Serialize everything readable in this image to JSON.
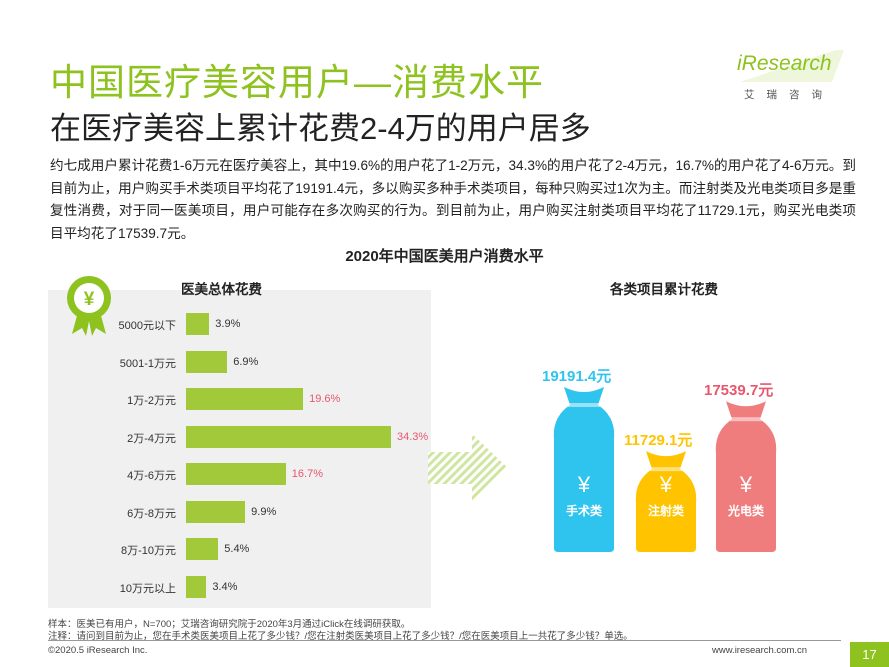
{
  "header": {
    "title": "中国医疗美容用户—消费水平",
    "subtitle": "在医疗美容上累计花费2-4万的用户居多"
  },
  "logo": {
    "main": "iResearch",
    "sub": "艾瑞咨询"
  },
  "body_text": "约七成用户累计花费1-6万元在医疗美容上，其中19.6%的用户花了1-2万元，34.3%的用户花了2-4万元，16.7%的用户花了4-6万元。到目前为止，用户购买手术类项目平均花了19191.4元，多以购买多种手术类项目，每种只购买过1次为主。而注射类及光电类项目多是重复性消费，对于同一医美项目，用户可能存在多次购买的行为。到目前为止，用户购买注射类项目平均花了11729.1元，购买光电类项目平均花了17539.7元。",
  "chart_title": "2020年中国医美用户消费水平",
  "colors": {
    "accent": "#8DC21F",
    "bar": "#A2C93A",
    "highlight": "#E8566F",
    "surgery": "#2EC4EE",
    "injection": "#FFC300",
    "optical": "#F07D7D"
  },
  "chart_data": [
    {
      "type": "bar",
      "orientation": "horizontal",
      "title": "医美总体花费",
      "categories": [
        "5000元以下",
        "5001-1万元",
        "1万-2万元",
        "2万-4万元",
        "4万-6万元",
        "6万-8万元",
        "8万-10万元",
        "10万元以上"
      ],
      "values": [
        3.9,
        6.9,
        19.6,
        34.3,
        16.7,
        9.9,
        5.4,
        3.4
      ],
      "labels": [
        "3.9%",
        "6.9%",
        "19.6%",
        "34.3%",
        "16.7%",
        "9.9%",
        "5.4%",
        "3.4%"
      ],
      "highlighted": [
        false,
        false,
        true,
        true,
        true,
        false,
        false,
        false
      ],
      "xlim": [
        0,
        34.3
      ]
    },
    {
      "type": "bar",
      "title": "各类项目累计花费",
      "categories": [
        "手术类",
        "注射类",
        "光电类"
      ],
      "values": [
        19191.4,
        11729.1,
        17539.7
      ],
      "labels": [
        "19191.4元",
        "11729.1元",
        "17539.7元"
      ],
      "icon_symbol": "¥"
    }
  ],
  "badge_symbol": "¥",
  "footer": {
    "sample_note": "样本：医美已有用户，N=700；艾瑞咨询研究院于2020年3月通过iClick在线调研获取。",
    "note": "注释：请问到目前为止，您在手术类医美项目上花了多少钱？/您在注射类医美项目上花了多少钱？/您在医美项目上一共花了多少钱？单选。",
    "copyright": "©2020.5 iResearch Inc.",
    "website": "www.iresearch.com.cn",
    "page": "17"
  }
}
